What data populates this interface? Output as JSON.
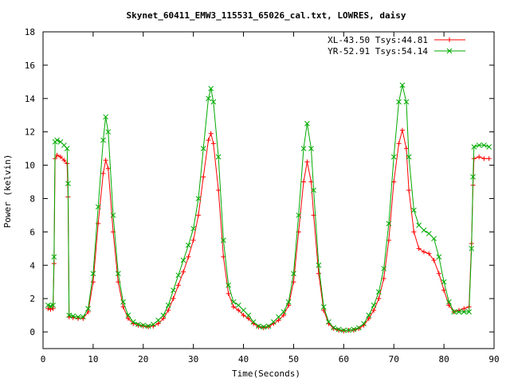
{
  "chart_data": {
    "type": "line",
    "title": "Skynet_60411_EMW3_115531_65026_cal.txt, LOWRES, daisy",
    "xlabel": "Time(Seconds)",
    "ylabel": "Power (kelvin)",
    "xlim": [
      0,
      90
    ],
    "ylim": [
      -1,
      18
    ],
    "xticks": [
      0,
      10,
      20,
      30,
      40,
      50,
      60,
      70,
      80,
      90
    ],
    "yticks": [
      0,
      2,
      4,
      6,
      8,
      10,
      12,
      14,
      16,
      18
    ],
    "grid": false,
    "legend_position": "top-right",
    "series": [
      {
        "name": "XL-43.50 Tsys:44.81",
        "color": "#ff0000",
        "marker": "plus",
        "points": [
          [
            1.0,
            1.4
          ],
          [
            1.5,
            1.35
          ],
          [
            2.0,
            1.4
          ],
          [
            2.2,
            4.1
          ],
          [
            2.4,
            10.4
          ],
          [
            2.8,
            10.6
          ],
          [
            3.5,
            10.5
          ],
          [
            4.2,
            10.3
          ],
          [
            4.8,
            10.1
          ],
          [
            5.0,
            8.1
          ],
          [
            5.2,
            0.9
          ],
          [
            6,
            0.85
          ],
          [
            7,
            0.8
          ],
          [
            8,
            0.8
          ],
          [
            9,
            1.2
          ],
          [
            10,
            3.0
          ],
          [
            11,
            6.5
          ],
          [
            12,
            9.5
          ],
          [
            12.5,
            10.3
          ],
          [
            13,
            9.8
          ],
          [
            14,
            6.0
          ],
          [
            15,
            3.0
          ],
          [
            16,
            1.5
          ],
          [
            17,
            0.8
          ],
          [
            18,
            0.5
          ],
          [
            19,
            0.4
          ],
          [
            20,
            0.35
          ],
          [
            21,
            0.3
          ],
          [
            22,
            0.35
          ],
          [
            23,
            0.5
          ],
          [
            24,
            0.8
          ],
          [
            25,
            1.3
          ],
          [
            26,
            2.0
          ],
          [
            27,
            2.8
          ],
          [
            28,
            3.6
          ],
          [
            29,
            4.5
          ],
          [
            30,
            5.5
          ],
          [
            31,
            7.0
          ],
          [
            32,
            9.3
          ],
          [
            33,
            11.5
          ],
          [
            33.5,
            11.9
          ],
          [
            34,
            11.3
          ],
          [
            35,
            8.5
          ],
          [
            36,
            4.5
          ],
          [
            37,
            2.3
          ],
          [
            38,
            1.5
          ],
          [
            39,
            1.3
          ],
          [
            40,
            1.0
          ],
          [
            41,
            0.8
          ],
          [
            42,
            0.5
          ],
          [
            43,
            0.3
          ],
          [
            44,
            0.25
          ],
          [
            45,
            0.3
          ],
          [
            46,
            0.5
          ],
          [
            47,
            0.7
          ],
          [
            48,
            1.0
          ],
          [
            49,
            1.6
          ],
          [
            50,
            3.0
          ],
          [
            51,
            6.0
          ],
          [
            52,
            9.0
          ],
          [
            52.7,
            10.2
          ],
          [
            53.5,
            9.0
          ],
          [
            54,
            7.0
          ],
          [
            55,
            3.5
          ],
          [
            56,
            1.3
          ],
          [
            57,
            0.5
          ],
          [
            58,
            0.2
          ],
          [
            59,
            0.1
          ],
          [
            60,
            0.05
          ],
          [
            61,
            0.1
          ],
          [
            62,
            0.1
          ],
          [
            63,
            0.2
          ],
          [
            64,
            0.4
          ],
          [
            65,
            0.8
          ],
          [
            66,
            1.3
          ],
          [
            67,
            2.0
          ],
          [
            68,
            3.2
          ],
          [
            69,
            5.5
          ],
          [
            70,
            9.0
          ],
          [
            71,
            11.3
          ],
          [
            71.7,
            12.1
          ],
          [
            72.5,
            11.0
          ],
          [
            73,
            8.5
          ],
          [
            74,
            6.0
          ],
          [
            75,
            5.0
          ],
          [
            76,
            4.8
          ],
          [
            77,
            4.7
          ],
          [
            78,
            4.3
          ],
          [
            79,
            3.5
          ],
          [
            80,
            2.5
          ],
          [
            81,
            1.6
          ],
          [
            82,
            1.2
          ],
          [
            83,
            1.3
          ],
          [
            84,
            1.4
          ],
          [
            85,
            1.5
          ],
          [
            85.5,
            5.3
          ],
          [
            85.8,
            8.8
          ],
          [
            86,
            10.4
          ],
          [
            87,
            10.5
          ],
          [
            88,
            10.4
          ],
          [
            89,
            10.4
          ]
        ]
      },
      {
        "name": "YR-52.91 Tsys:54.14",
        "color": "#00aa00",
        "marker": "cross",
        "points": [
          [
            1.0,
            1.6
          ],
          [
            1.5,
            1.55
          ],
          [
            2.0,
            1.6
          ],
          [
            2.2,
            4.5
          ],
          [
            2.4,
            11.4
          ],
          [
            2.8,
            11.5
          ],
          [
            3.5,
            11.4
          ],
          [
            4.2,
            11.2
          ],
          [
            4.8,
            11.0
          ],
          [
            5.0,
            8.9
          ],
          [
            5.2,
            1.0
          ],
          [
            6,
            0.95
          ],
          [
            7,
            0.9
          ],
          [
            8,
            0.9
          ],
          [
            9,
            1.4
          ],
          [
            10,
            3.5
          ],
          [
            11,
            7.5
          ],
          [
            12,
            11.5
          ],
          [
            12.5,
            12.9
          ],
          [
            13,
            12.0
          ],
          [
            14,
            7.0
          ],
          [
            15,
            3.5
          ],
          [
            16,
            1.8
          ],
          [
            17,
            1.0
          ],
          [
            18,
            0.6
          ],
          [
            19,
            0.45
          ],
          [
            20,
            0.4
          ],
          [
            21,
            0.35
          ],
          [
            22,
            0.45
          ],
          [
            23,
            0.7
          ],
          [
            24,
            1.0
          ],
          [
            25,
            1.6
          ],
          [
            26,
            2.5
          ],
          [
            27,
            3.4
          ],
          [
            28,
            4.3
          ],
          [
            29,
            5.2
          ],
          [
            30,
            6.2
          ],
          [
            31,
            8.0
          ],
          [
            32,
            11.0
          ],
          [
            33,
            14.0
          ],
          [
            33.5,
            14.6
          ],
          [
            34,
            13.8
          ],
          [
            35,
            10.5
          ],
          [
            36,
            5.5
          ],
          [
            37,
            2.8
          ],
          [
            38,
            1.8
          ],
          [
            39,
            1.6
          ],
          [
            40,
            1.3
          ],
          [
            41,
            1.0
          ],
          [
            42,
            0.6
          ],
          [
            43,
            0.35
          ],
          [
            44,
            0.3
          ],
          [
            45,
            0.35
          ],
          [
            46,
            0.6
          ],
          [
            47,
            0.9
          ],
          [
            48,
            1.2
          ],
          [
            49,
            1.8
          ],
          [
            50,
            3.5
          ],
          [
            51,
            7.0
          ],
          [
            52,
            11.0
          ],
          [
            52.7,
            12.5
          ],
          [
            53.5,
            11.0
          ],
          [
            54,
            8.5
          ],
          [
            55,
            4.0
          ],
          [
            56,
            1.5
          ],
          [
            57,
            0.6
          ],
          [
            58,
            0.25
          ],
          [
            59,
            0.15
          ],
          [
            60,
            0.1
          ],
          [
            61,
            0.1
          ],
          [
            62,
            0.15
          ],
          [
            63,
            0.25
          ],
          [
            64,
            0.5
          ],
          [
            65,
            1.0
          ],
          [
            66,
            1.6
          ],
          [
            67,
            2.4
          ],
          [
            68,
            3.8
          ],
          [
            69,
            6.5
          ],
          [
            70,
            10.5
          ],
          [
            71,
            13.8
          ],
          [
            71.7,
            14.8
          ],
          [
            72.5,
            13.8
          ],
          [
            73,
            10.5
          ],
          [
            74,
            7.3
          ],
          [
            75,
            6.4
          ],
          [
            76,
            6.1
          ],
          [
            77,
            5.9
          ],
          [
            78,
            5.6
          ],
          [
            79,
            4.5
          ],
          [
            80,
            3.0
          ],
          [
            81,
            1.8
          ],
          [
            82,
            1.2
          ],
          [
            83,
            1.2
          ],
          [
            84,
            1.2
          ],
          [
            85,
            1.2
          ],
          [
            85.5,
            5.0
          ],
          [
            85.8,
            9.3
          ],
          [
            86,
            11.1
          ],
          [
            87,
            11.2
          ],
          [
            88,
            11.2
          ],
          [
            89,
            11.1
          ]
        ]
      }
    ]
  }
}
